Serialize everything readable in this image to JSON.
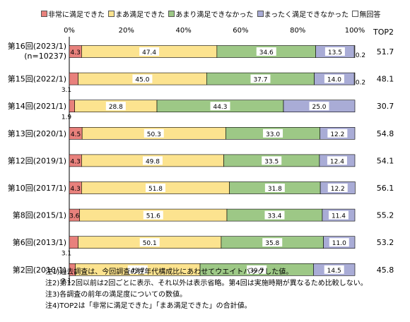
{
  "chart_data": {
    "type": "bar",
    "orientation": "horizontal",
    "stacked": true,
    "xlim": [
      0,
      100
    ],
    "x_ticks": [
      "0%",
      "20%",
      "40%",
      "60%",
      "80%",
      "100%"
    ],
    "legend_position": "top",
    "categories": [
      {
        "label": "第16回(2023/1)",
        "sublabel": "(n=10237)"
      },
      {
        "label": "第15回(2022/1)"
      },
      {
        "label": "第14回(2021/1)"
      },
      {
        "label": "第13回(2020/1)"
      },
      {
        "label": "第12回(2019/1)"
      },
      {
        "label": "第10回(2017/1)"
      },
      {
        "label": "第8回(2015/1)"
      },
      {
        "label": "第6回(2013/1)"
      },
      {
        "label": "第2回(2010/1)"
      }
    ],
    "series": [
      {
        "name": "非常に満足できた",
        "color": "#e8817c",
        "values": [
          4.3,
          3.1,
          1.9,
          4.5,
          4.3,
          4.3,
          3.6,
          3.1,
          2.1
        ],
        "labels": [
          "4.3",
          "3.1",
          "1.9",
          "4.5",
          "4.3",
          "4.3",
          "3.6",
          "3.1",
          "2.1"
        ]
      },
      {
        "name": "まあ満足できた",
        "color": "#fce38f",
        "values": [
          47.4,
          45.0,
          28.8,
          50.3,
          49.8,
          51.8,
          51.6,
          50.1,
          43.7
        ],
        "labels": [
          "47.4",
          "45.0",
          "28.8",
          "50.3",
          "49.8",
          "51.8",
          "51.6",
          "50.1",
          "43.7"
        ]
      },
      {
        "name": "あまり満足できなかった",
        "color": "#9dc886",
        "values": [
          34.6,
          37.7,
          44.3,
          33.0,
          33.5,
          31.8,
          33.4,
          35.8,
          39.7
        ],
        "labels": [
          "34.6",
          "37.7",
          "44.3",
          "33.0",
          "33.5",
          "31.8",
          "33.4",
          "35.8",
          "39.7"
        ]
      },
      {
        "name": "まったく満足できなかった",
        "color": "#a9acd6",
        "values": [
          13.5,
          14.0,
          25.0,
          12.2,
          12.4,
          12.2,
          11.4,
          11.0,
          14.5
        ],
        "labels": [
          "13.5",
          "14.0",
          "25.0",
          "12.2",
          "12.4",
          "12.2",
          "11.4",
          "11.0",
          "14.5"
        ]
      },
      {
        "name": "無回答",
        "color": "#ffffff",
        "values": [
          0.2,
          0.2,
          0,
          0,
          0,
          0,
          0,
          0,
          0
        ],
        "labels": [
          "0.2",
          "0.2",
          "",
          "",
          "",
          "",
          "",
          "",
          ""
        ]
      }
    ],
    "top2": {
      "header": "TOP2",
      "values": [
        "51.7",
        "48.1",
        "30.7",
        "54.8",
        "54.1",
        "56.1",
        "55.2",
        "53.2",
        "45.8"
      ]
    },
    "notes": [
      "注1)過去調査は、今回調査の性年代構成比にあわせてウエイトバックした値。",
      "注2)第12回以前は2回ごとに表示、それ以外は表示省略。第4回は実施時期が異なるため比較しない。",
      "注3)各調査の前年の満足度についての数値。",
      "注4)TOP2は「非常に満足できた」「まあ満足できた」の合計値。"
    ]
  }
}
